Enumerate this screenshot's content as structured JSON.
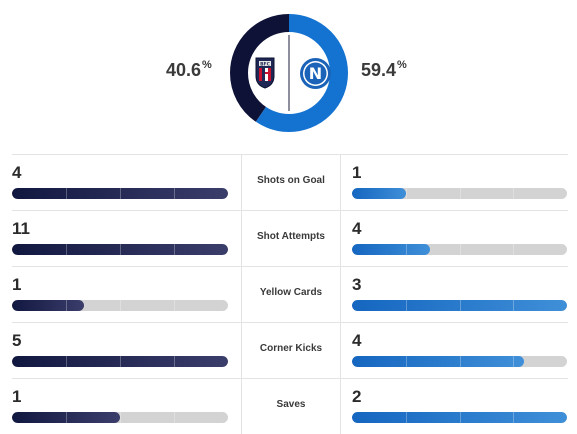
{
  "possession": {
    "home_pct": "40.6",
    "away_pct": "59.4",
    "percent_sign": "%",
    "home_value": 40.6,
    "away_value": 59.4,
    "home_color": "#0e1236",
    "away_color": "#1473d1"
  },
  "teams": {
    "home": {
      "logo": "bologna-crest-icon"
    },
    "away": {
      "logo": "napoli-crest-icon"
    }
  },
  "stats": [
    {
      "label": "Shots on Goal",
      "home": "4",
      "away": "1",
      "home_fraction": 1.0,
      "away_fraction": 0.25
    },
    {
      "label": "Shot Attempts",
      "home": "11",
      "away": "4",
      "home_fraction": 1.0,
      "away_fraction": 0.364
    },
    {
      "label": "Yellow Cards",
      "home": "1",
      "away": "3",
      "home_fraction": 0.333,
      "away_fraction": 1.0
    },
    {
      "label": "Corner Kicks",
      "home": "5",
      "away": "4",
      "home_fraction": 1.0,
      "away_fraction": 0.8
    },
    {
      "label": "Saves",
      "home": "1",
      "away": "2",
      "home_fraction": 0.5,
      "away_fraction": 1.0
    }
  ]
}
